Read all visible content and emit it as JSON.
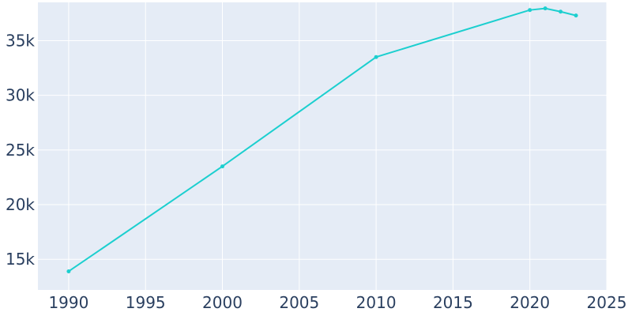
{
  "chart_data": {
    "type": "line",
    "title": "",
    "xlabel": "",
    "ylabel": "",
    "xlim": [
      1988,
      2025
    ],
    "ylim": [
      12200,
      38500
    ],
    "x_ticks": [
      1990,
      1995,
      2000,
      2005,
      2010,
      2015,
      2020,
      2025
    ],
    "x_tick_labels": [
      "1990",
      "1995",
      "2000",
      "2005",
      "2010",
      "2015",
      "2020",
      "2025"
    ],
    "y_ticks": [
      15000,
      20000,
      25000,
      30000,
      35000
    ],
    "y_tick_labels": [
      "15k",
      "20k",
      "25k",
      "30k",
      "35k"
    ],
    "grid": true,
    "legend": "none",
    "series": [
      {
        "x": [
          1990,
          2000,
          2010,
          2020,
          2021,
          2022,
          2023
        ],
        "y": [
          13900,
          23500,
          33500,
          37800,
          37950,
          37650,
          37300
        ],
        "color": "#1ccfcf"
      }
    ],
    "colors": {
      "plot_background": "#e5ecf6",
      "grid": "#ffffff",
      "tick_text": "#2a3f5f"
    }
  }
}
